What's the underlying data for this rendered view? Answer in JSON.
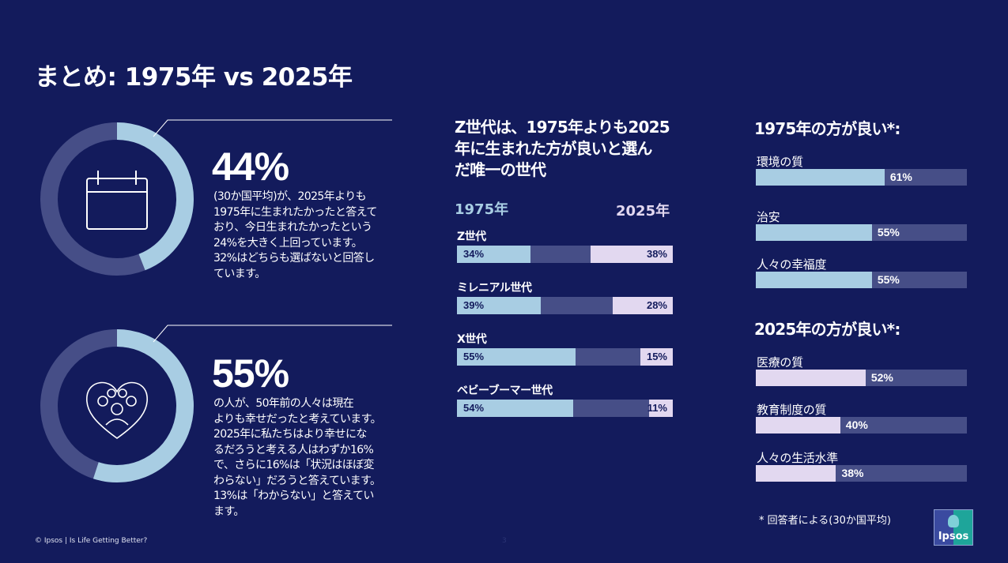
{
  "title": "まとめ: 1975年 vs 2025年",
  "colors": {
    "background": "#131b5c",
    "light_blue": "#a8cde3",
    "muted": "#464e87",
    "lavender": "#e2d8f0"
  },
  "stat1": {
    "value": "44%",
    "percent": 44,
    "icon": "calendar-icon",
    "lines": [
      "(30か国平均)が、2025年よりも",
      "1975年に生まれたかったと答えて",
      "おり、今日生まれたかったという",
      "24%を大きく上回っています。",
      "32%はどちらも選ばないと回答し",
      "ています。"
    ]
  },
  "stat2": {
    "value": "55%",
    "percent": 55,
    "icon": "heart-family-icon",
    "lines": [
      "の人が、50年前の人々は現在",
      "よりも幸せだったと考えています。",
      "2025年に私たちはより幸せにな",
      "るだろうと考える人はわずか16%",
      "で、さらに16%は「状況はほぼ変",
      "わらない」だろうと答えています。",
      "13%は「わからない」と答えてい",
      "ます。"
    ]
  },
  "generations": {
    "heading_lines": [
      "Z世代は、1975年よりも2025",
      "年に生まれた方が良いと選ん",
      "だ唯一の世代"
    ],
    "legend_1975": "1975年",
    "legend_2025": "2025年",
    "rows": [
      {
        "label": "Z世代",
        "v1975": 34,
        "v2025": 38,
        "t1975": "34%",
        "t2025": "38%"
      },
      {
        "label": "ミレニアル世代",
        "v1975": 39,
        "v2025": 28,
        "t1975": "39%",
        "t2025": "28%"
      },
      {
        "label": "X世代",
        "v1975": 55,
        "v2025": 15,
        "t1975": "55%",
        "t2025": "15%"
      },
      {
        "label": "ベビーブーマー世代",
        "v1975": 54,
        "v2025": 11,
        "t1975": "54%",
        "t2025": "11%"
      }
    ]
  },
  "better1975": {
    "heading": "1975年の方が良い*:",
    "items": [
      {
        "label": "環境の質",
        "value": 61,
        "text": "61%"
      },
      {
        "label": "治安",
        "value": 55,
        "text": "55%"
      },
      {
        "label": "人々の幸福度",
        "value": 55,
        "text": "55%"
      }
    ]
  },
  "better2025": {
    "heading": "2025年の方が良い*:",
    "items": [
      {
        "label": "医療の質",
        "value": 52,
        "text": "52%"
      },
      {
        "label": "教育制度の質",
        "value": 40,
        "text": "40%"
      },
      {
        "label": "人々の生活水準",
        "value": 38,
        "text": "38%"
      }
    ]
  },
  "footnote": "* 回答者による(30か国平均)",
  "footer": "© Ipsos | Is Life Getting Better?",
  "page_number": "3",
  "logo": "Ipsos"
}
